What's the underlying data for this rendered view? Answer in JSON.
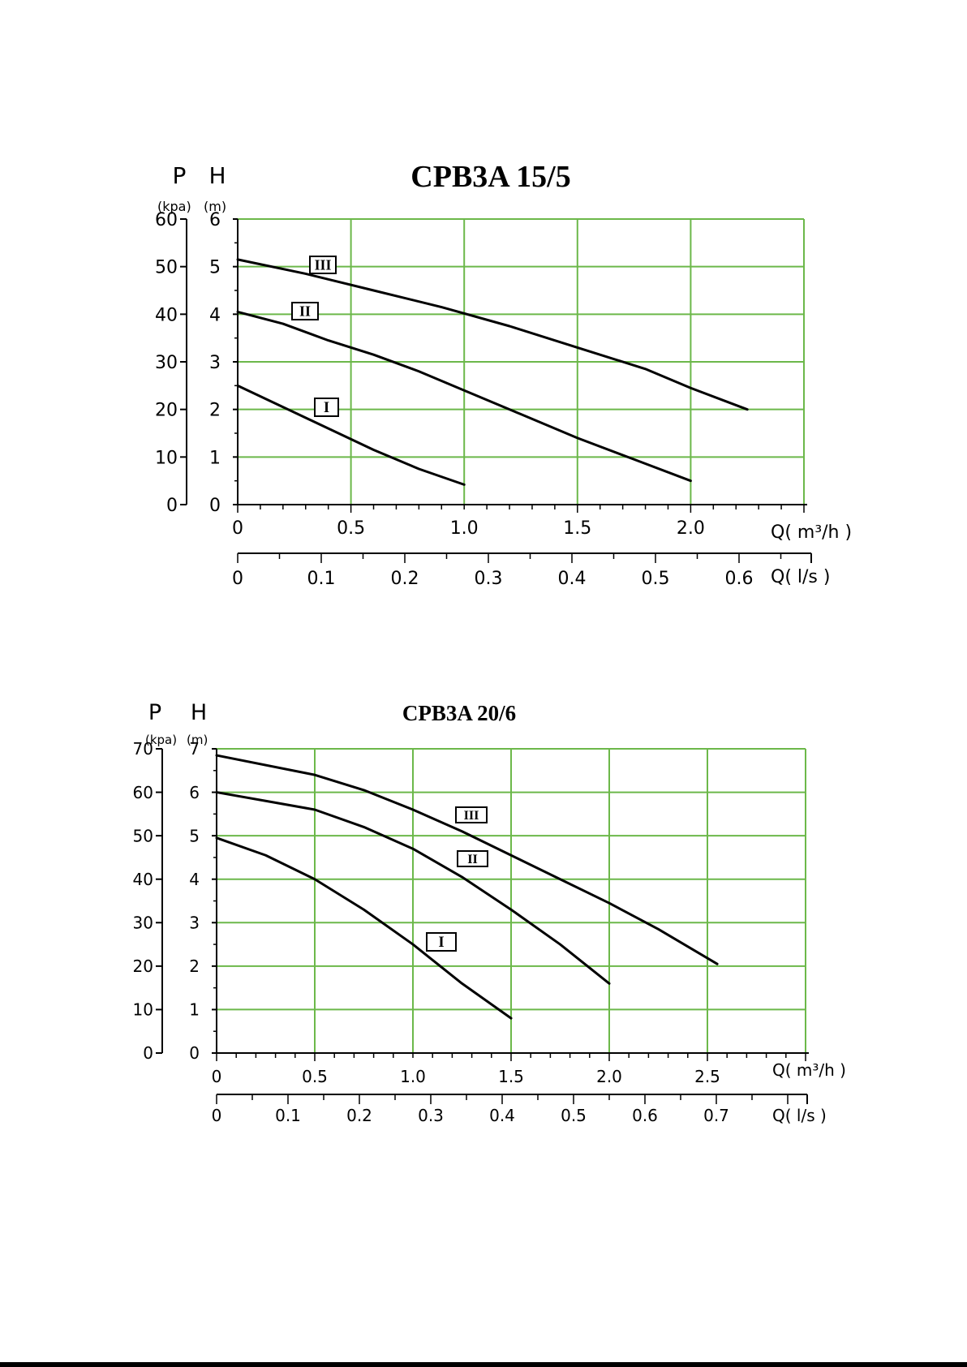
{
  "chart_data": [
    {
      "type": "line",
      "title": "CPB3A 15/5",
      "p_label": "P",
      "h_label": "H",
      "p_unit": "(kpa)",
      "h_unit": "(m)",
      "q1_label": "Q( m³/h )",
      "q2_label": "Q( l/s )",
      "xlim": [
        0,
        2.5
      ],
      "ylim": [
        0,
        6
      ],
      "x_ticks": [
        "0",
        "0.5",
        "1.0",
        "1.5",
        "2.0"
      ],
      "x_tick_values": [
        0,
        0.5,
        1.0,
        1.5,
        2.0
      ],
      "ls_ticks": [
        "0",
        "0.1",
        "0.2",
        "0.3",
        "0.4",
        "0.5",
        "0.6"
      ],
      "ls_tick_values": [
        0,
        0.1,
        0.2,
        0.3,
        0.4,
        0.5,
        0.6
      ],
      "h_ticks": [
        "0",
        "1",
        "2",
        "3",
        "4",
        "5",
        "6"
      ],
      "h_tick_values": [
        0,
        1,
        2,
        3,
        4,
        5,
        6
      ],
      "p_ticks": [
        "0",
        "10",
        "20",
        "30",
        "40",
        "50",
        "60"
      ],
      "grid": true,
      "series": [
        {
          "name": "III",
          "x": [
            0,
            0.3,
            0.6,
            0.9,
            1.2,
            1.5,
            1.8,
            2.0,
            2.25
          ],
          "y": [
            5.15,
            4.85,
            4.5,
            4.15,
            3.75,
            3.3,
            2.85,
            2.45,
            2.0
          ]
        },
        {
          "name": "II",
          "x": [
            0,
            0.2,
            0.4,
            0.6,
            0.8,
            1.0,
            1.25,
            1.5,
            1.75,
            2.0
          ],
          "y": [
            4.05,
            3.8,
            3.45,
            3.15,
            2.8,
            2.4,
            1.9,
            1.4,
            0.95,
            0.5
          ]
        },
        {
          "name": "I",
          "x": [
            0,
            0.2,
            0.4,
            0.6,
            0.8,
            1.0
          ],
          "y": [
            2.5,
            2.05,
            1.6,
            1.15,
            0.75,
            0.42
          ]
        }
      ]
    },
    {
      "type": "line",
      "title": "CPB3A 20/6",
      "p_label": "P",
      "h_label": "H",
      "p_unit": "(kpa)",
      "h_unit": "(m)",
      "q1_label": "Q( m³/h )",
      "q2_label": "Q( l/s )",
      "xlim": [
        0,
        3.0
      ],
      "ylim": [
        0,
        7
      ],
      "x_ticks": [
        "0",
        "0.5",
        "1.0",
        "1.5",
        "2.0",
        "2.5"
      ],
      "x_tick_values": [
        0,
        0.5,
        1.0,
        1.5,
        2.0,
        2.5
      ],
      "ls_ticks": [
        "0",
        "0.1",
        "0.2",
        "0.3",
        "0.4",
        "0.5",
        "0.6",
        "0.7"
      ],
      "ls_tick_values": [
        0,
        0.1,
        0.2,
        0.3,
        0.4,
        0.5,
        0.6,
        0.7
      ],
      "h_ticks": [
        "0",
        "1",
        "2",
        "3",
        "4",
        "5",
        "6",
        "7"
      ],
      "h_tick_values": [
        0,
        1,
        2,
        3,
        4,
        5,
        6,
        7
      ],
      "p_ticks": [
        "0",
        "10",
        "20",
        "30",
        "40",
        "50",
        "60",
        "70"
      ],
      "grid": true,
      "series": [
        {
          "name": "III",
          "x": [
            0,
            0.5,
            0.75,
            1.0,
            1.25,
            1.5,
            1.75,
            2.0,
            2.25,
            2.55
          ],
          "y": [
            6.85,
            6.4,
            6.05,
            5.6,
            5.1,
            4.55,
            4.0,
            3.45,
            2.85,
            2.05
          ]
        },
        {
          "name": "II",
          "x": [
            0,
            0.25,
            0.5,
            0.75,
            1.0,
            1.25,
            1.5,
            1.75,
            2.0
          ],
          "y": [
            6.0,
            5.8,
            5.6,
            5.2,
            4.7,
            4.05,
            3.3,
            2.5,
            1.6
          ]
        },
        {
          "name": "I",
          "x": [
            0,
            0.25,
            0.5,
            0.75,
            1.0,
            1.25,
            1.5
          ],
          "y": [
            4.95,
            4.55,
            4.0,
            3.3,
            2.5,
            1.6,
            0.8
          ]
        }
      ]
    }
  ]
}
